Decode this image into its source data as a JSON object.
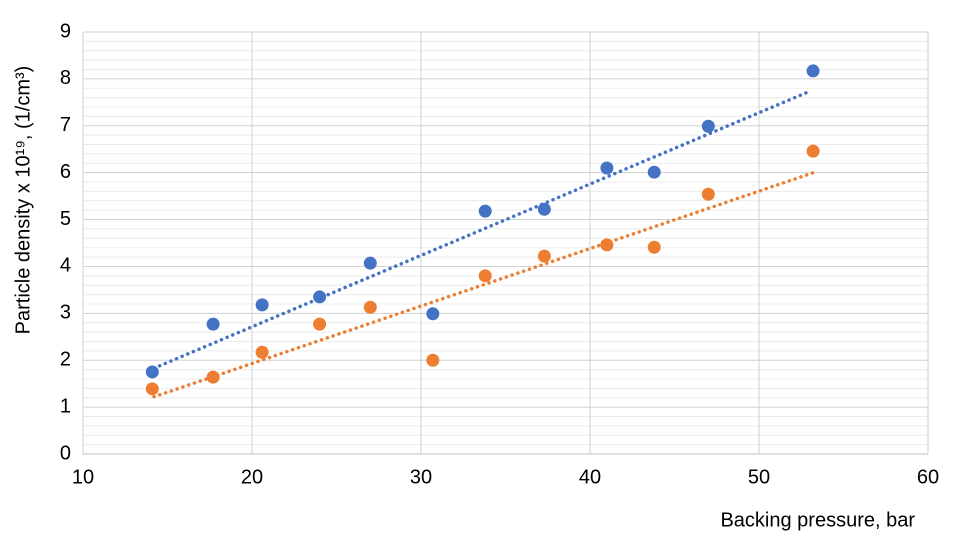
{
  "chart_data": {
    "type": "scatter",
    "x_label": "Backing pressure, bar",
    "y_label": "Particle density x 10¹⁹, (1/cm³)",
    "xlim": [
      10,
      60
    ],
    "xticks": [
      10,
      20,
      30,
      40,
      50,
      60
    ],
    "ylim": [
      0,
      9
    ],
    "yticks": [
      0,
      1,
      2,
      3,
      4,
      5,
      6,
      7,
      8,
      9
    ],
    "grid": true,
    "minor_grid": true,
    "series": [
      {
        "color": "#4472c4",
        "x": [
          14.1,
          17.7,
          20.6,
          24.0,
          27.0,
          30.7,
          33.8,
          37.3,
          41.0,
          43.8,
          47.0,
          53.2
        ],
        "values": [
          1.75,
          2.77,
          3.18,
          3.35,
          4.07,
          2.99,
          5.18,
          5.22,
          6.1,
          6.01,
          6.99,
          8.17
        ],
        "trendline": {
          "x": [
            14.2,
            52.9
          ],
          "values": [
            1.83,
            7.72
          ]
        }
      },
      {
        "color": "#ed7d31",
        "x": [
          14.1,
          17.7,
          20.6,
          24.0,
          27.0,
          30.7,
          33.8,
          37.3,
          41.0,
          43.8,
          47.0,
          53.2
        ],
        "values": [
          1.39,
          1.64,
          2.17,
          2.77,
          3.13,
          2.0,
          3.8,
          4.22,
          4.46,
          4.41,
          5.54,
          6.46
        ],
        "trendline": {
          "x": [
            14.2,
            53.3
          ],
          "values": [
            1.22,
            6.01
          ]
        }
      }
    ]
  }
}
